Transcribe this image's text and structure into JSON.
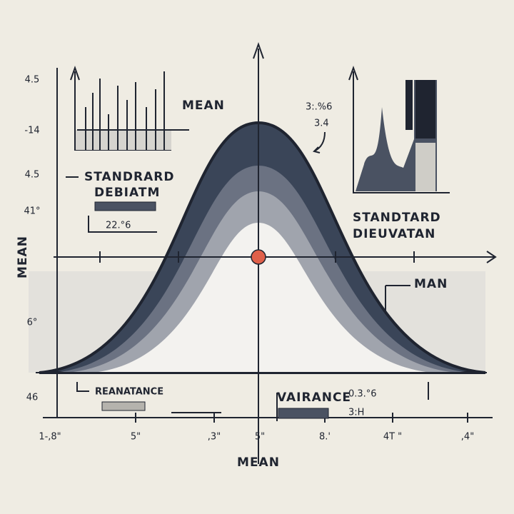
{
  "left_labels": [
    "4.5",
    "-14",
    "4.5",
    "41°",
    "6°",
    "46"
  ],
  "left_axis_title": "MEAN",
  "bottom_labels": [
    "1-,8\"",
    "5\"",
    ",3\"",
    "5\"",
    "8.'",
    "4T \"",
    ",4\""
  ],
  "bottom_axis_title": "MEAN",
  "annotations": {
    "mean_top": "MEAN",
    "top_right_value_1": "3:.%6",
    "top_right_value_2": "3.4",
    "std_left_1": "STANDRARD",
    "std_left_2": "DEBIATM",
    "std_left_value": "22.°6",
    "std_right_1": "STANDTARD",
    "std_right_2": "DIEUVATAN",
    "man": "MAN",
    "reanatance": "REANATANCE",
    "variance": "VAIRANCE",
    "variance_value_1": "0.3.°6",
    "variance_value_2": "3:H"
  }
}
